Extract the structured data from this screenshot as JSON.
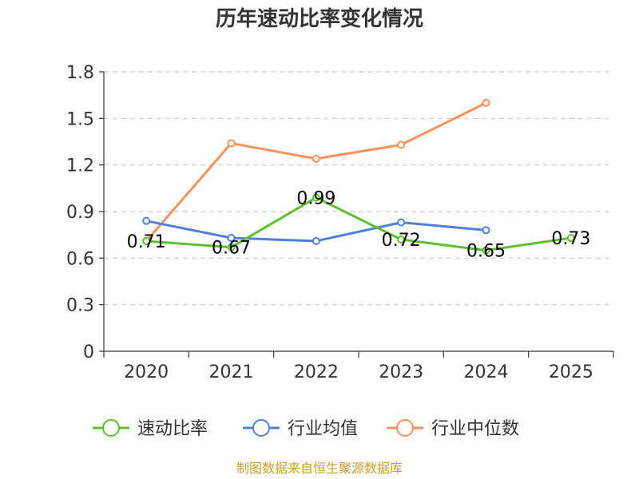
{
  "colors": {
    "quick_ratio": "#5cc12c",
    "industry_avg": "#4f7fdc",
    "industry_median": "#f7925a",
    "grid": "#cccccc",
    "axis": "#333333",
    "source": "#c8a032"
  },
  "source_text": "制图数据来自恒生聚源数据库",
  "chart_data": {
    "type": "line",
    "title": "历年速动比率变化情况",
    "categories": [
      "2020",
      "2021",
      "2022",
      "2023",
      "2024",
      "2025"
    ],
    "ylim": [
      0,
      1.8
    ],
    "yticks": [
      "0",
      "0.3",
      "0.6",
      "0.9",
      "1.2",
      "1.5",
      "1.8"
    ],
    "ytick_values": [
      0,
      0.3,
      0.6,
      0.9,
      1.2,
      1.5,
      1.8
    ],
    "grid": true,
    "legend_position": "bottom",
    "series": [
      {
        "name": "速动比率",
        "color_key": "quick_ratio",
        "values": [
          0.71,
          0.67,
          0.99,
          0.72,
          0.65,
          0.73
        ],
        "labels": [
          "0.71",
          "0.67",
          "0.99",
          "0.72",
          "0.65",
          "0.73"
        ],
        "show_labels": true
      },
      {
        "name": "行业均值",
        "color_key": "industry_avg",
        "values": [
          0.84,
          0.73,
          0.71,
          0.83,
          0.78,
          null
        ],
        "show_labels": false
      },
      {
        "name": "行业中位数",
        "color_key": "industry_median",
        "values": [
          0.71,
          1.34,
          1.24,
          1.33,
          1.6,
          null
        ],
        "show_labels": false
      }
    ]
  }
}
